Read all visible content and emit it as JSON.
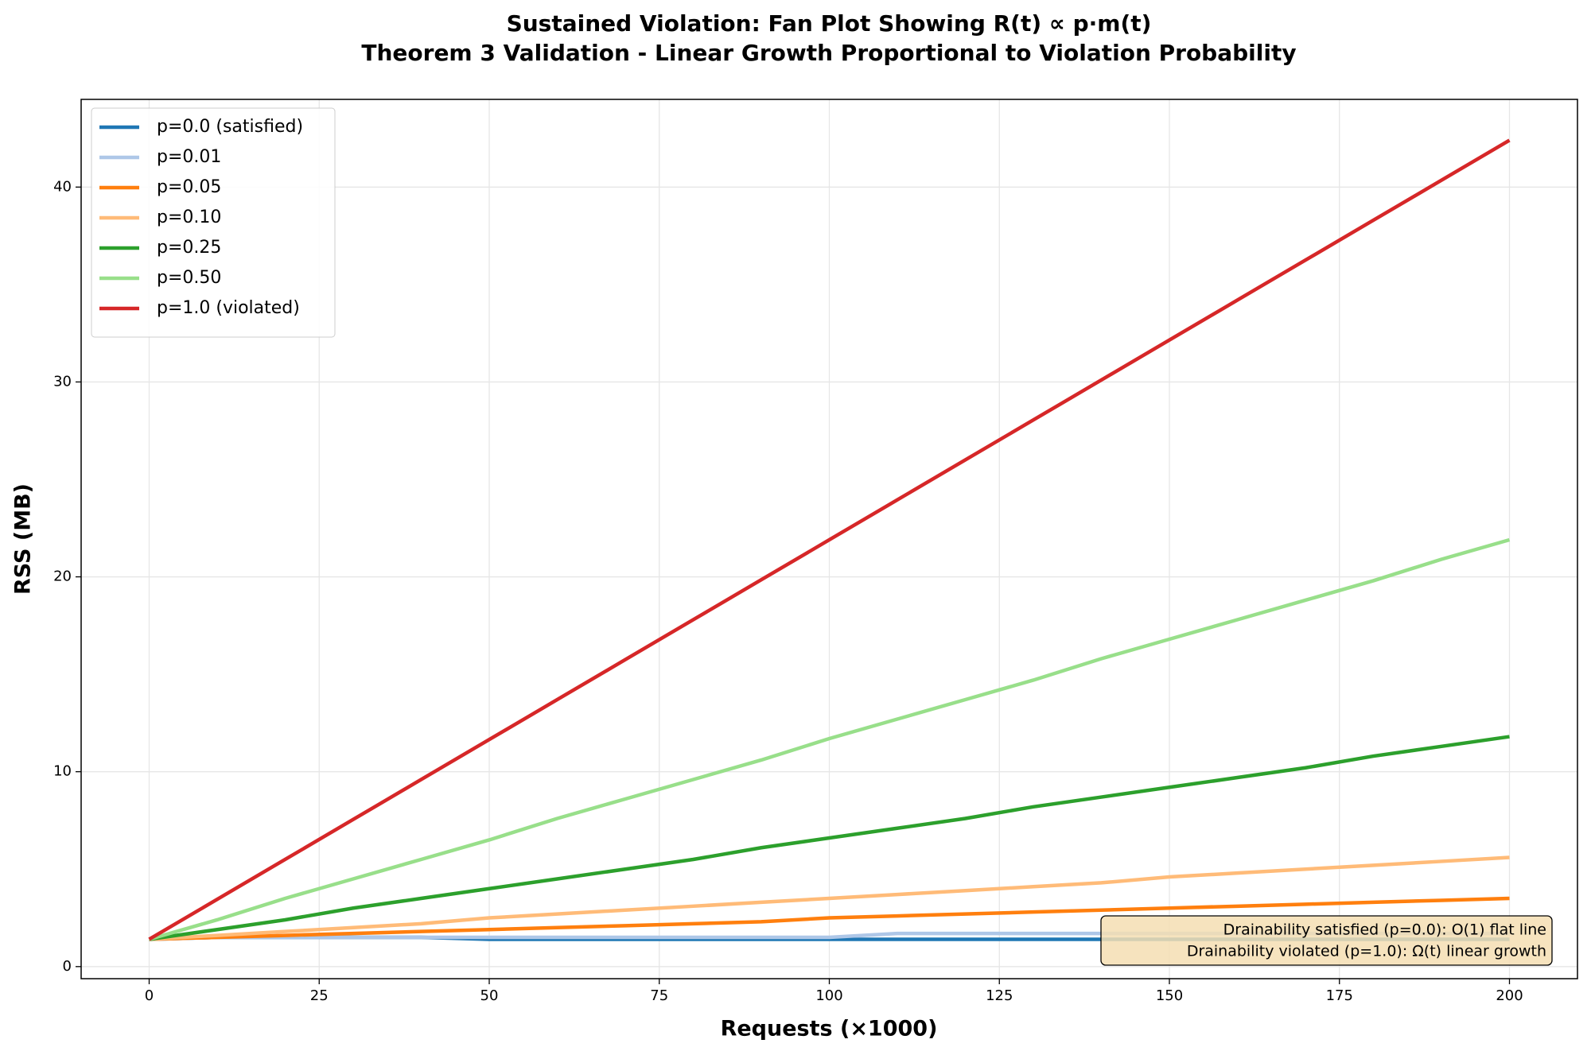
{
  "chart_data": {
    "type": "line",
    "title": [
      "Sustained Violation: Fan Plot Showing R(t) ∝ p·m(t)",
      "Theorem 3 Validation - Linear Growth Proportional to Violation Probability"
    ],
    "x_label": "Requests (×1000)",
    "y_label": "RSS (MB)",
    "x": [
      0,
      10,
      20,
      30,
      40,
      50,
      60,
      70,
      80,
      90,
      100,
      110,
      120,
      130,
      140,
      150,
      160,
      170,
      180,
      190,
      200
    ],
    "series": [
      {
        "name": "p=0.0 (satisfied)",
        "color": "#1f77b4",
        "values": [
          1.4,
          1.5,
          1.5,
          1.5,
          1.5,
          1.4,
          1.4,
          1.4,
          1.4,
          1.4,
          1.4,
          1.4,
          1.4,
          1.4,
          1.4,
          1.4,
          1.4,
          1.4,
          1.4,
          1.4,
          1.4
        ]
      },
      {
        "name": "p=0.01",
        "color": "#aec7e8",
        "values": [
          1.4,
          1.5,
          1.5,
          1.5,
          1.5,
          1.5,
          1.5,
          1.5,
          1.5,
          1.5,
          1.5,
          1.7,
          1.7,
          1.7,
          1.7,
          1.7,
          1.7,
          1.7,
          1.7,
          1.7,
          1.7
        ]
      },
      {
        "name": "p=0.05",
        "color": "#ff7f0e",
        "values": [
          1.4,
          1.5,
          1.6,
          1.7,
          1.8,
          1.9,
          2.0,
          2.1,
          2.2,
          2.3,
          2.5,
          2.6,
          2.7,
          2.8,
          2.9,
          3.0,
          3.1,
          3.2,
          3.3,
          3.4,
          3.5
        ]
      },
      {
        "name": "p=0.10",
        "color": "#ffbb78",
        "values": [
          1.4,
          1.6,
          1.8,
          2.0,
          2.2,
          2.5,
          2.7,
          2.9,
          3.1,
          3.3,
          3.5,
          3.7,
          3.9,
          4.1,
          4.3,
          4.6,
          4.8,
          5.0,
          5.2,
          5.4,
          5.6
        ]
      },
      {
        "name": "p=0.25",
        "color": "#2ca02c",
        "values": [
          1.4,
          1.9,
          2.4,
          3.0,
          3.5,
          4.0,
          4.5,
          5.0,
          5.5,
          6.1,
          6.6,
          7.1,
          7.6,
          8.2,
          8.7,
          9.2,
          9.7,
          10.2,
          10.8,
          11.3,
          11.8
        ]
      },
      {
        "name": "p=0.50",
        "color": "#98df8a",
        "values": [
          1.4,
          2.4,
          3.5,
          4.5,
          5.5,
          6.5,
          7.6,
          8.6,
          9.6,
          10.6,
          11.7,
          12.7,
          13.7,
          14.7,
          15.8,
          16.8,
          17.8,
          18.8,
          19.8,
          20.9,
          21.9
        ]
      },
      {
        "name": "p=1.0 (violated)",
        "color": "#d62728",
        "values": [
          1.4,
          3.45,
          5.5,
          7.55,
          9.6,
          11.65,
          13.7,
          15.75,
          17.8,
          19.85,
          21.9,
          23.95,
          26.0,
          28.05,
          30.1,
          32.15,
          34.2,
          36.25,
          38.3,
          40.35,
          42.4
        ]
      }
    ],
    "xlim": [
      -10,
      210
    ],
    "ylim": [
      -0.62,
      44.5
    ],
    "xticks": [
      0,
      25,
      50,
      75,
      100,
      125,
      150,
      175,
      200
    ],
    "yticks": [
      0,
      10,
      20,
      30,
      40
    ],
    "grid": true,
    "legend": "upper-left",
    "annotation": [
      "Drainability satisfied (p=0.0): O(1) flat line",
      "Drainability violated (p=1.0): Ω(t) linear growth"
    ]
  }
}
